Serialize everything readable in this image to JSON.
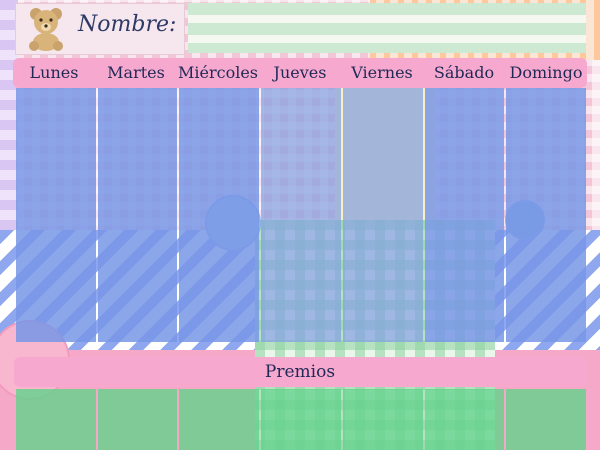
{
  "header": {
    "name_label": "Nombre:",
    "name_value": "",
    "bear_icon": "teddy-bear-icon"
  },
  "days": [
    "Lunes",
    "Martes",
    "Miércoles",
    "Jueves",
    "Viernes",
    "Sábado",
    "Domingo"
  ],
  "prizes": {
    "label": "Premios"
  },
  "colors": {
    "header_pink": "#f7a8cf",
    "column_blue": "#7896e6",
    "prize_green": "#64d28c",
    "text_navy": "#1e2a55"
  }
}
